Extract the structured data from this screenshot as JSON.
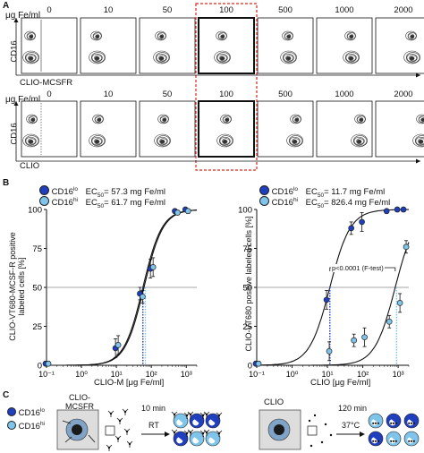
{
  "panels": {
    "a": "A",
    "b": "B",
    "c": "C"
  },
  "flow": {
    "unit_label": "μg Fe/ml",
    "concentrations": [
      "0",
      "10",
      "50",
      "100",
      "500",
      "1000",
      "2000"
    ],
    "top_ylabel": "CD16",
    "top_xlabel": "CLIO-MCSFR",
    "bottom_ylabel": "CD16",
    "bottom_xlabel": "CLIO"
  },
  "legend_left": {
    "lo_label": "CD16",
    "lo_sup": "lo",
    "lo_ec": "EC",
    "lo_ec_sub": "50",
    "lo_ec_value": "= 57.3 mg Fe/ml",
    "hi_label": "CD16",
    "hi_sup": "hi",
    "hi_ec": "EC",
    "hi_ec_sub": "50",
    "hi_ec_value": "= 61.7 mg Fe/ml"
  },
  "legend_right": {
    "lo_label": "CD16",
    "lo_sup": "lo",
    "lo_ec": "EC",
    "lo_ec_sub": "50",
    "lo_ec_value": "= 11.7 mg Fe/ml",
    "hi_label": "CD16",
    "hi_sup": "hi",
    "hi_ec": "EC",
    "hi_ec_sub": "50",
    "hi_ec_value": "= 826.4 mg Fe/ml"
  },
  "colors": {
    "lo": "#1f3fbf",
    "hi": "#7fc4ea",
    "red_dash": "#d9261c"
  },
  "chart_data": [
    {
      "type": "scatter",
      "ylabel": "CLIO-VT680-MCSF-R positive labeled cells [%]",
      "xlabel": "CLIO-M [μg Fe/ml]",
      "xscale": "log",
      "xlim": [
        0.1,
        2000
      ],
      "ylim": [
        0,
        100
      ],
      "yticks": [
        "0",
        "25",
        "50",
        "75",
        "100"
      ],
      "xticks": [
        "10⁻¹",
        "10⁰",
        "10¹",
        "10²",
        "10³"
      ],
      "series": [
        {
          "name": "CD16lo",
          "x": [
            0.1,
            10,
            50,
            100,
            500,
            1000
          ],
          "y": [
            1,
            11,
            46,
            62,
            99,
            100
          ]
        },
        {
          "name": "CD16hi",
          "x": [
            0.1,
            10,
            50,
            100,
            500,
            1000
          ],
          "y": [
            1,
            13,
            44,
            63,
            98,
            99
          ]
        }
      ],
      "ec50": [
        57.3,
        61.7
      ],
      "hline_y": 50
    },
    {
      "type": "scatter",
      "ylabel": "CLIO-VT680 positive labeled cells [%]",
      "xlabel": "CLIO [μg Fe/ml]",
      "xscale": "log",
      "xlim": [
        0.1,
        2000
      ],
      "ylim": [
        0,
        100
      ],
      "yticks": [
        "0",
        "25",
        "50",
        "75",
        "100"
      ],
      "xticks": [
        "10⁻¹",
        "10⁰",
        "10¹",
        "10²",
        "10³"
      ],
      "series": [
        {
          "name": "CD16lo",
          "x": [
            0.1,
            10,
            50,
            100,
            500,
            1000,
            1500
          ],
          "y": [
            1,
            42,
            88,
            92,
            99,
            100,
            100
          ]
        },
        {
          "name": "CD16hi",
          "x": [
            0.1,
            10,
            50,
            100,
            500,
            1000,
            1500
          ],
          "y": [
            1,
            9,
            16,
            18,
            28,
            40,
            76
          ]
        }
      ],
      "ec50": [
        11.7,
        826.4
      ],
      "hline_y": 50,
      "annotation": "p<0.0001 (F-test)"
    }
  ],
  "schematic": {
    "left_box_label": "CLIO-MCSFR",
    "left_time": "10 min",
    "left_temp": "RT",
    "right_box_label": "CLIO",
    "right_time": "120 min",
    "right_temp": "37°C",
    "legend_lo": "CD16",
    "legend_lo_sup": "lo",
    "legend_hi": "CD16",
    "legend_hi_sup": "hi"
  }
}
